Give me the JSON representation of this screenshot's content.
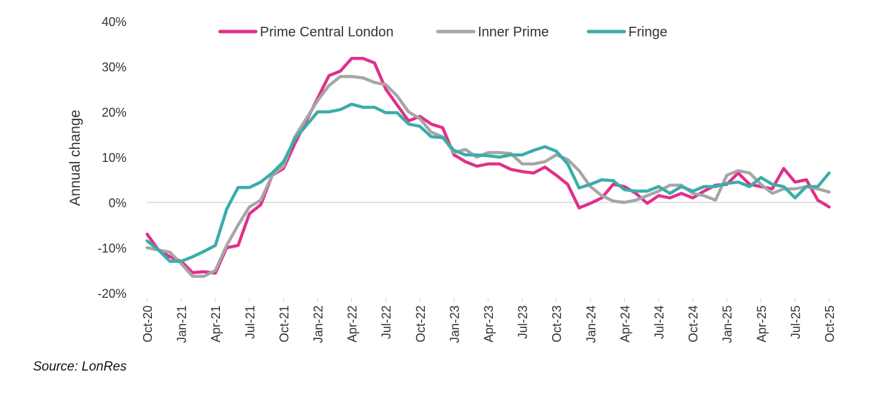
{
  "chart_data": {
    "type": "line",
    "title": "",
    "xlabel": "",
    "ylabel": "Annual change",
    "ylim": [
      -20,
      40
    ],
    "y_ticks": [
      -20,
      -10,
      0,
      10,
      20,
      30,
      40
    ],
    "y_tick_labels": [
      "-20%",
      "-10%",
      "0%",
      "10%",
      "20%",
      "30%",
      "40%"
    ],
    "legend_position": "top-center",
    "x": [
      "Oct-20",
      "Nov-20",
      "Dec-20",
      "Jan-21",
      "Feb-21",
      "Mar-21",
      "Apr-21",
      "May-21",
      "Jun-21",
      "Jul-21",
      "Aug-21",
      "Sep-21",
      "Oct-21",
      "Nov-21",
      "Dec-21",
      "Jan-22",
      "Feb-22",
      "Mar-22",
      "Apr-22",
      "May-22",
      "Jun-22",
      "Jul-22",
      "Aug-22",
      "Sep-22",
      "Oct-22",
      "Nov-22",
      "Dec-22",
      "Jan-23",
      "Feb-23",
      "Mar-23",
      "Apr-23",
      "May-23",
      "Jun-23",
      "Jul-23",
      "Aug-23",
      "Sep-23",
      "Oct-23",
      "Nov-23",
      "Dec-23",
      "Jan-24",
      "Feb-24",
      "Mar-24",
      "Apr-24",
      "May-24",
      "Jun-24",
      "Jul-24",
      "Aug-24",
      "Sep-24",
      "Oct-24",
      "Nov-24",
      "Dec-24",
      "Jan-25",
      "Feb-25",
      "Mar-25",
      "Apr-25",
      "May-25",
      "Jun-25",
      "Jul-25",
      "Aug-25",
      "Sep-25",
      "Oct-25"
    ],
    "x_tick_labels": [
      "Oct-20",
      "Jan-21",
      "Apr-21",
      "Jul-21",
      "Oct-21",
      "Jan-22",
      "Apr-22",
      "Jul-22",
      "Oct-22",
      "Jan-23",
      "Apr-23",
      "Jul-23",
      "Oct-23",
      "Jan-24",
      "Apr-24",
      "Jul-24",
      "Oct-24",
      "Jan-25",
      "Apr-25",
      "Jul-25",
      "Oct-25"
    ],
    "series": [
      {
        "name": "Prime Central London",
        "color": "#E0308A",
        "values": [
          -7,
          -10.5,
          -12,
          -13,
          -15.5,
          -15.3,
          -15.6,
          -10,
          -9.5,
          -2.5,
          -0.5,
          6,
          7.5,
          13,
          18,
          23,
          28,
          29,
          31.8,
          31.8,
          30.8,
          25,
          21.5,
          18,
          19,
          17.3,
          16.5,
          10.5,
          9,
          8,
          8.5,
          8.5,
          7.3,
          6.8,
          6.5,
          7.8,
          6,
          4,
          -1.2,
          -0.2,
          1,
          4,
          3.5,
          2,
          -0.2,
          1.5,
          1,
          2,
          1,
          2.5,
          3.8,
          4,
          6.5,
          4,
          3.5,
          3,
          7.5,
          4.5,
          5,
          0.5,
          -1
        ]
      },
      {
        "name": "Inner Prime",
        "color": "#A6A6A6",
        "values": [
          -10,
          -10.5,
          -11,
          -13.5,
          -16.3,
          -16.3,
          -15,
          -9.5,
          -5,
          -1,
          0.5,
          6,
          8,
          14.5,
          18.5,
          22.5,
          25.8,
          27.8,
          27.8,
          27.5,
          26.5,
          26,
          23.5,
          20,
          18.5,
          15.5,
          14.5,
          11,
          11.7,
          10,
          11,
          11,
          10.8,
          8.5,
          8.5,
          9,
          10.5,
          9.5,
          7,
          3.5,
          1.5,
          0.3,
          0,
          0.5,
          1.5,
          2.5,
          3.8,
          3.8,
          2,
          1.5,
          0.5,
          6,
          7,
          6.5,
          4,
          2,
          3,
          3,
          3.5,
          3,
          2.3
        ]
      },
      {
        "name": "Fringe",
        "color": "#3AADA8",
        "values": [
          -8.5,
          -10.5,
          -13,
          -13,
          -12,
          -10.8,
          -9.5,
          -1.5,
          3.3,
          3.3,
          4.5,
          6.5,
          9,
          14,
          17,
          20,
          20,
          20.5,
          21.7,
          21,
          21,
          19.8,
          19.8,
          17.3,
          16.8,
          14.5,
          14.3,
          11.5,
          10.5,
          10.5,
          10.3,
          10,
          10.5,
          10.5,
          11.5,
          12.3,
          11.3,
          8.5,
          3.2,
          4,
          5,
          4.8,
          2.8,
          2.5,
          2.5,
          3.5,
          2,
          3.5,
          2.5,
          3.5,
          3.5,
          4.2,
          4.5,
          3.5,
          5.5,
          4,
          3.5,
          1,
          3.5,
          3.5,
          6.5
        ]
      }
    ]
  },
  "source_note": "Source: LonRes",
  "style": {
    "zero_line_color": "#D9D9D9",
    "text_color": "#333333"
  }
}
